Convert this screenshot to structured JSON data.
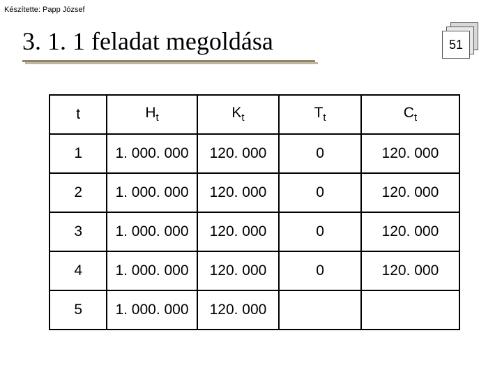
{
  "author_line": "Készítette: Papp József",
  "title": "3. 1. 1 feladat megoldása",
  "page_number": "51",
  "table": {
    "columns": [
      "t",
      "Ht",
      "Kt",
      "Tt",
      "Ct"
    ],
    "column_widths_pct": [
      14,
      22,
      20,
      20,
      24
    ],
    "rows": [
      [
        "1",
        "1. 000. 000",
        "120. 000",
        "0",
        "120. 000"
      ],
      [
        "2",
        "1. 000. 000",
        "120. 000",
        "0",
        "120. 000"
      ],
      [
        "3",
        "1. 000. 000",
        "120. 000",
        "0",
        "120. 000"
      ],
      [
        "4",
        "1. 000. 000",
        "120. 000",
        "0",
        "120. 000"
      ],
      [
        "5",
        "1. 000. 000",
        "120. 000",
        "",
        ""
      ]
    ]
  },
  "colors": {
    "underline_main": "#8f8669",
    "underline_shadow": "#bfb6a0",
    "border": "#000000",
    "background": "#ffffff"
  },
  "fonts": {
    "title_family": "Times New Roman",
    "title_size_pt": 27,
    "body_family": "Arial",
    "cell_size_pt": 16
  }
}
